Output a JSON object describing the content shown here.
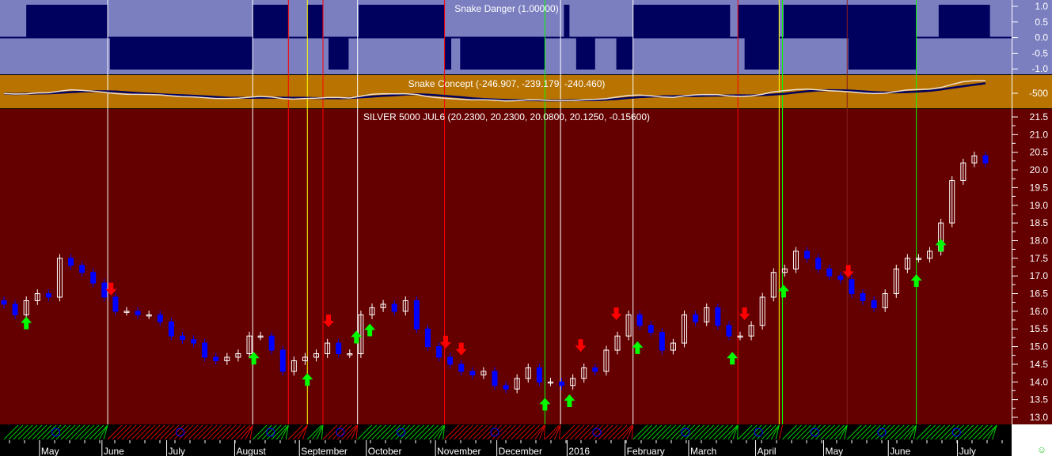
{
  "panels": {
    "danger_title": "Snake Danger (1.00000)",
    "concept_title": "Snake Concept (-246.907, -239.179, -240.460)",
    "price_title": "SILVER 5000 JUL6 (20.2300, 20.2300, 20.0800, 20.1250, -0.15600)"
  },
  "colors": {
    "danger_bg": "#7b7fc0",
    "danger_fill": "#00005e",
    "concept_bg": "#b87300",
    "price_bg": "#640000",
    "up_candle": "#ffffff",
    "down_candle": "#0000ff",
    "buy_arrow": "#00ff00",
    "sell_arrow": "#ff0000"
  },
  "chart_data": {
    "type": "candlestick",
    "danger_axis": {
      "ticks": [
        "1.0",
        "0.5",
        "0.0",
        "-0.5",
        "-1.0"
      ],
      "ylim": [
        -1,
        1
      ]
    },
    "concept_axis": {
      "ticks": [
        "-500"
      ]
    },
    "price_axis": {
      "ticks": [
        "21.5",
        "21.0",
        "20.5",
        "20.0",
        "19.5",
        "19.0",
        "18.5",
        "18.0",
        "17.5",
        "17.0",
        "16.5",
        "16.0",
        "15.5",
        "15.0",
        "14.5",
        "14.0",
        "13.5",
        "13.0"
      ],
      "ylim": [
        12.9,
        21.7
      ]
    },
    "closes": [
      16.2,
      15.9,
      16.3,
      16.5,
      16.4,
      17.5,
      17.3,
      17.1,
      16.8,
      16.4,
      16.0,
      16.0,
      15.9,
      15.9,
      15.7,
      15.3,
      15.2,
      15.1,
      14.7,
      14.6,
      14.7,
      14.8,
      15.3,
      15.3,
      14.9,
      14.3,
      14.6,
      14.7,
      14.8,
      15.1,
      14.8,
      14.8,
      15.9,
      16.1,
      16.2,
      16.0,
      16.3,
      15.5,
      15.0,
      14.7,
      14.5,
      14.3,
      14.2,
      14.3,
      13.9,
      13.8,
      14.1,
      14.4,
      14.0,
      14.0,
      13.9,
      14.1,
      14.4,
      14.3,
      14.9,
      15.3,
      15.9,
      15.6,
      15.4,
      14.9,
      15.1,
      15.9,
      15.7,
      16.1,
      15.6,
      15.3,
      15.3,
      15.6,
      16.4,
      17.1,
      17.2,
      17.7,
      17.5,
      17.2,
      17.0,
      16.9,
      16.5,
      16.3,
      16.1,
      16.5,
      17.2,
      17.5,
      17.5,
      17.7,
      18.5,
      19.7,
      20.2,
      20.4,
      20.2
    ],
    "months": [
      {
        "label": "May",
        "bar": 3.4
      },
      {
        "label": "June",
        "bar": 9
      },
      {
        "label": "July",
        "bar": 14.8
      },
      {
        "label": "August",
        "bar": 20.9
      },
      {
        "label": "September",
        "bar": 26.7
      },
      {
        "label": "October",
        "bar": 32.7
      },
      {
        "label": "November",
        "bar": 38.9
      },
      {
        "label": "December",
        "bar": 44.4
      },
      {
        "label": "2016",
        "bar": 50.7
      },
      {
        "label": "February",
        "bar": 55.9
      },
      {
        "label": "March",
        "bar": 61.6
      },
      {
        "label": "April",
        "bar": 67.6
      },
      {
        "label": "May",
        "bar": 73.7
      },
      {
        "label": "June",
        "bar": 79.5
      },
      {
        "label": "July",
        "bar": 85.7
      }
    ],
    "danger_segments": [
      {
        "value": 1,
        "from": 2,
        "to": 9.3
      },
      {
        "value": 1,
        "from": 22.3,
        "to": 25.5
      },
      {
        "value": 1,
        "from": 27.2,
        "to": 28.6
      },
      {
        "value": 1,
        "from": 31.8,
        "to": 39.5
      },
      {
        "value": 1,
        "from": 50.2,
        "to": 50.7
      },
      {
        "value": 1,
        "from": 56.4,
        "to": 65.1
      },
      {
        "value": 1,
        "from": 65.8,
        "to": 69.5
      },
      {
        "value": 1,
        "from": 69.9,
        "to": 81.8
      },
      {
        "value": 1,
        "from": 83.8,
        "to": 88.4
      },
      {
        "value": -1,
        "from": 9.5,
        "to": 22.3
      },
      {
        "value": -1,
        "from": 29.1,
        "to": 30.9
      },
      {
        "value": -1,
        "from": 39.5,
        "to": 40.1
      },
      {
        "value": -1,
        "from": 40.9,
        "to": 48.5
      },
      {
        "value": -1,
        "from": 51.3,
        "to": 53
      },
      {
        "value": -1,
        "from": 54.9,
        "to": 56.4
      },
      {
        "value": -1,
        "from": 66.4,
        "to": 69.5
      },
      {
        "value": -1,
        "from": 75.7,
        "to": 81.8
      }
    ],
    "signal_lines": [
      {
        "bar": 9.3,
        "color": "#ffffff"
      },
      {
        "bar": 22.3,
        "color": "#ffffff"
      },
      {
        "bar": 31.7,
        "color": "#ffffff"
      },
      {
        "bar": 49.9,
        "color": "#ffffff"
      },
      {
        "bar": 56.4,
        "color": "#ffffff"
      },
      {
        "bar": 75.6,
        "color": "#8a2020"
      },
      {
        "bar": 25.5,
        "color": "#ff0000"
      },
      {
        "bar": 28.6,
        "color": "#ff0000"
      },
      {
        "bar": 39.5,
        "color": "#ff0000"
      },
      {
        "bar": 65.8,
        "color": "#ff0000"
      },
      {
        "bar": 27.2,
        "color": "#ffff00"
      },
      {
        "bar": 69.5,
        "color": "#ffff00"
      },
      {
        "bar": 48.5,
        "color": "#00ff00"
      },
      {
        "bar": 69.8,
        "color": "#00ff00"
      },
      {
        "bar": 81.8,
        "color": "#00ff00"
      }
    ],
    "buy_arrows": [
      2,
      22.4,
      27.2,
      31.6,
      32.8,
      48.5,
      50.7,
      56.8,
      65.3,
      69.9,
      81.8,
      84
    ],
    "sell_arrows": [
      9.6,
      29.1,
      39.6,
      41,
      51.7,
      54.9,
      66.4,
      75.7
    ]
  }
}
